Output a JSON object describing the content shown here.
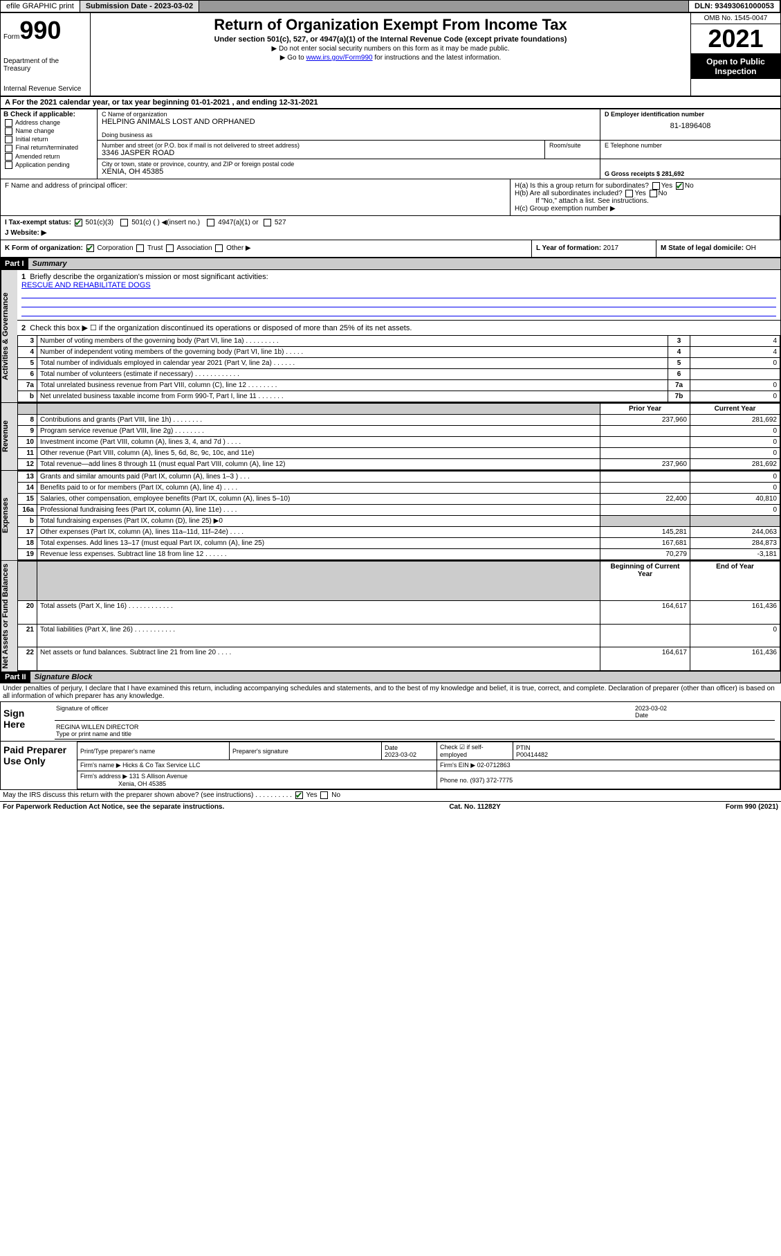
{
  "toprow": {
    "efile": "efile GRAPHIC print",
    "subdate_label": "Submission Date - ",
    "subdate": "2023-03-02",
    "dln_label": "DLN: ",
    "dln": "93493061000053"
  },
  "header": {
    "form_word": "Form",
    "form_num": "990",
    "dept": "Department of the Treasury",
    "irs": "Internal Revenue Service",
    "title": "Return of Organization Exempt From Income Tax",
    "subtitle": "Under section 501(c), 527, or 4947(a)(1) of the Internal Revenue Code (except private foundations)",
    "note1": "▶ Do not enter social security numbers on this form as it may be made public.",
    "note2_pre": "▶ Go to ",
    "note2_link": "www.irs.gov/Form990",
    "note2_post": " for instructions and the latest information.",
    "omb": "OMB No. 1545-0047",
    "year": "2021",
    "open": "Open to Public Inspection"
  },
  "section_a": "A For the 2021 calendar year, or tax year beginning 01-01-2021    , and ending 12-31-2021",
  "col_b": {
    "hdr": "B Check if applicable:",
    "items": [
      "Address change",
      "Name change",
      "Initial return",
      "Final return/terminated",
      "Amended return",
      "Application pending"
    ]
  },
  "col_c": {
    "name_lbl": "C Name of organization",
    "name": "HELPING ANIMALS LOST AND ORPHANED",
    "dba_lbl": "Doing business as",
    "dba": "",
    "street_lbl": "Number and street (or P.O. box if mail is not delivered to street address)",
    "room_lbl": "Room/suite",
    "street": "3346 JASPER ROAD",
    "city_lbl": "City or town, state or province, country, and ZIP or foreign postal code",
    "city": "XENIA, OH  45385"
  },
  "col_d": {
    "lbl": "D Employer identification number",
    "val": "81-1896408"
  },
  "col_e": {
    "lbl": "E Telephone number",
    "val": ""
  },
  "col_g": {
    "lbl": "G Gross receipts $ ",
    "val": "281,692"
  },
  "row_f": "F  Name and address of principal officer:",
  "row_h": {
    "ha": "H(a)  Is this a group return for subordinates?",
    "hb": "H(b)  Are all subordinates included?",
    "hb_note": "If \"No,\" attach a list. See instructions.",
    "hc": "H(c)  Group exemption number ▶"
  },
  "row_i": {
    "lbl": "I    Tax-exempt status:",
    "opts": [
      "501(c)(3)",
      "501(c) (   ) ◀(insert no.)",
      "4947(a)(1) or",
      "527"
    ]
  },
  "row_j": "J    Website: ▶",
  "row_k": {
    "lbl": "K Form of organization:",
    "opts": [
      "Corporation",
      "Trust",
      "Association",
      "Other ▶"
    ]
  },
  "row_l": {
    "lbl": "L Year of formation: ",
    "val": "2017"
  },
  "row_m": {
    "lbl": "M State of legal domicile: ",
    "val": "OH"
  },
  "part1": {
    "num": "Part I",
    "title": "Summary"
  },
  "summary": {
    "line1_lbl": "Briefly describe the organization's mission or most significant activities:",
    "line1_val": "RESCUE AND REHABILITATE DOGS",
    "line2": "Check this box ▶ ☐  if the organization discontinued its operations or disposed of more than 25% of its net assets.",
    "lines": [
      {
        "n": "3",
        "t": "Number of voting members of the governing body (Part VI, line 1a)   .    .    .    .    .    .    .    .    .",
        "box": "3",
        "v": "4"
      },
      {
        "n": "4",
        "t": "Number of independent voting members of the governing body (Part VI, line 1b)   .    .    .    .    .",
        "box": "4",
        "v": "4"
      },
      {
        "n": "5",
        "t": "Total number of individuals employed in calendar year 2021 (Part V, line 2a)   .    .    .    .    .    .",
        "box": "5",
        "v": "0"
      },
      {
        "n": "6",
        "t": "Total number of volunteers (estimate if necessary)   .    .    .    .    .    .    .    .    .    .    .    .",
        "box": "6",
        "v": ""
      },
      {
        "n": "7a",
        "t": "Total unrelated business revenue from Part VIII, column (C), line 12   .    .    .    .    .    .    .    .",
        "box": "7a",
        "v": "0"
      },
      {
        "n": "b",
        "t": "Net unrelated business taxable income from Form 990-T, Part I, line 11   .    .    .    .    .    .    .",
        "box": "7b",
        "v": "0"
      }
    ],
    "twocol_hdr": {
      "prior": "Prior Year",
      "current": "Current Year"
    },
    "revenue": [
      {
        "n": "8",
        "t": "Contributions and grants (Part VIII, line 1h)   .    .    .    .    .    .    .    .",
        "p": "237,960",
        "c": "281,692"
      },
      {
        "n": "9",
        "t": "Program service revenue (Part VIII, line 2g)   .    .    .    .    .    .    .    .",
        "p": "",
        "c": "0"
      },
      {
        "n": "10",
        "t": "Investment income (Part VIII, column (A), lines 3, 4, and 7d )   .    .    .    .",
        "p": "",
        "c": "0"
      },
      {
        "n": "11",
        "t": "Other revenue (Part VIII, column (A), lines 5, 6d, 8c, 9c, 10c, and 11e)",
        "p": "",
        "c": "0"
      },
      {
        "n": "12",
        "t": "Total revenue—add lines 8 through 11 (must equal Part VIII, column (A), line 12)",
        "p": "237,960",
        "c": "281,692"
      }
    ],
    "expenses": [
      {
        "n": "13",
        "t": "Grants and similar amounts paid (Part IX, column (A), lines 1–3 )   .    .    .",
        "p": "",
        "c": "0"
      },
      {
        "n": "14",
        "t": "Benefits paid to or for members (Part IX, column (A), line 4)   .    .    .    .",
        "p": "",
        "c": "0"
      },
      {
        "n": "15",
        "t": "Salaries, other compensation, employee benefits (Part IX, column (A), lines 5–10)",
        "p": "22,400",
        "c": "40,810"
      },
      {
        "n": "16a",
        "t": "Professional fundraising fees (Part IX, column (A), line 11e)   .    .    .    .",
        "p": "",
        "c": "0"
      },
      {
        "n": "b",
        "t": "Total fundraising expenses (Part IX, column (D), line 25) ▶0",
        "p": "grey",
        "c": "grey"
      },
      {
        "n": "17",
        "t": "Other expenses (Part IX, column (A), lines 11a–11d, 11f–24e)   .    .    .    .",
        "p": "145,281",
        "c": "244,063"
      },
      {
        "n": "18",
        "t": "Total expenses. Add lines 13–17 (must equal Part IX, column (A), line 25)",
        "p": "167,681",
        "c": "284,873"
      },
      {
        "n": "19",
        "t": "Revenue less expenses. Subtract line 18 from line 12   .    .    .    .    .    .",
        "p": "70,279",
        "c": "-3,181"
      }
    ],
    "netassets_hdr": {
      "begin": "Beginning of Current Year",
      "end": "End of Year"
    },
    "netassets": [
      {
        "n": "20",
        "t": "Total assets (Part X, line 16)   .    .    .    .    .    .    .    .    .    .    .    .",
        "p": "164,617",
        "c": "161,436"
      },
      {
        "n": "21",
        "t": "Total liabilities (Part X, line 26)   .    .    .    .    .    .    .    .    .    .    .",
        "p": "",
        "c": "0"
      },
      {
        "n": "22",
        "t": "Net assets or fund balances. Subtract line 21 from line 20   .    .    .    .",
        "p": "164,617",
        "c": "161,436"
      }
    ]
  },
  "side_labels": {
    "ag": "Activities & Governance",
    "rev": "Revenue",
    "exp": "Expenses",
    "na": "Net Assets or Fund Balances"
  },
  "part2": {
    "num": "Part II",
    "title": "Signature Block"
  },
  "sig": {
    "penalty": "Under penalties of perjury, I declare that I have examined this return, including accompanying schedules and statements, and to the best of my knowledge and belief, it is true, correct, and complete. Declaration of preparer (other than officer) is based on all information of which preparer has any knowledge.",
    "sign_here": "Sign Here",
    "sig_officer": "Signature of officer",
    "date_lbl": "Date",
    "date": "2023-03-02",
    "name": "REGINA WILLEN  DIRECTOR",
    "name_lbl": "Type or print name and title",
    "paid": "Paid Preparer Use Only",
    "prep_name_lbl": "Print/Type preparer's name",
    "prep_sig_lbl": "Preparer's signature",
    "prep_date_lbl": "Date",
    "prep_date": "2023-03-02",
    "check_lbl": "Check ☑ if self-employed",
    "ptin_lbl": "PTIN",
    "ptin": "P00414482",
    "firm_name_lbl": "Firm's name    ▶ ",
    "firm_name": "Hicks & Co Tax Service LLC",
    "firm_ein_lbl": "Firm's EIN ▶ ",
    "firm_ein": "02-0712863",
    "firm_addr_lbl": "Firm's address ▶ ",
    "firm_addr": "131 S Allison Avenue",
    "firm_city": "Xenia, OH  45385",
    "phone_lbl": "Phone no. ",
    "phone": "(937) 372-7775",
    "may_irs": "May the IRS discuss this return with the preparer shown above? (see instructions)   .    .    .    .    .    .    .    .    .    .",
    "yes": "Yes",
    "no": "No"
  },
  "footer": {
    "left": "For Paperwork Reduction Act Notice, see the separate instructions.",
    "mid": "Cat. No. 11282Y",
    "right_pre": "Form ",
    "right_bold": "990",
    "right_post": " (2021)"
  }
}
